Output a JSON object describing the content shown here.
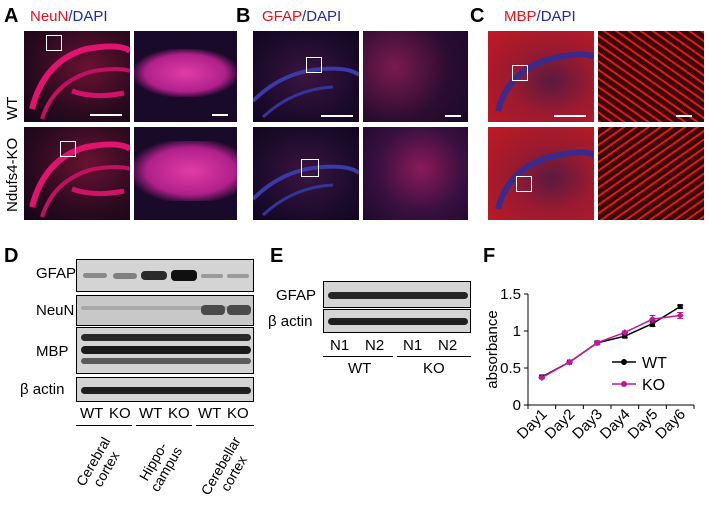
{
  "panels": {
    "A": {
      "letter": "A",
      "stain_red": "NeuN",
      "stain_sep": "/",
      "stain_blue": "DAPI"
    },
    "B": {
      "letter": "B",
      "stain_red": "GFAP",
      "stain_sep": "/",
      "stain_blue": "DAPI"
    },
    "C": {
      "letter": "C",
      "stain_red": "MBP",
      "stain_sep": "/",
      "stain_blue": "DAPI"
    },
    "D": {
      "letter": "D"
    },
    "E": {
      "letter": "E"
    },
    "F": {
      "letter": "F"
    }
  },
  "rows": {
    "wt": "WT",
    "ko": "Ndufs4-KO"
  },
  "blot_d": {
    "proteins": [
      "GFAP",
      "NeuN",
      "MBP",
      "β actin"
    ],
    "lanes": [
      "WT",
      "KO",
      "WT",
      "KO",
      "WT",
      "KO"
    ],
    "regions": [
      "Cerebral cortex",
      "Hippo-campus",
      "Cerebellar cortex"
    ],
    "region_lines": [
      [
        "Cerebral",
        "cortex"
      ],
      [
        "Hippo-",
        "campus"
      ],
      [
        "Cerebellar",
        "cortex"
      ]
    ]
  },
  "blot_e": {
    "proteins": [
      "GFAP",
      "β actin"
    ],
    "lanes": [
      "N1",
      "N2",
      "N1",
      "N2"
    ],
    "groups": [
      "WT",
      "KO"
    ]
  },
  "chart_data": {
    "type": "line",
    "title": "",
    "xlabel": "",
    "ylabel": "absorbance",
    "categories": [
      "Day1",
      "Day2",
      "Day3",
      "Day4",
      "Day5",
      "Day6"
    ],
    "ylim": [
      0,
      1.5
    ],
    "yticks": [
      "0",
      "0.5",
      "1",
      "1.5"
    ],
    "legend_position": "bottom-right",
    "series": [
      {
        "name": "WT",
        "color": "#000000",
        "marker": "square",
        "values": [
          0.38,
          0.58,
          0.84,
          0.93,
          1.1,
          1.33
        ],
        "errors": [
          0.01,
          0.01,
          0.02,
          0.02,
          0.04,
          0.02
        ]
      },
      {
        "name": "KO",
        "color": "#c0189a",
        "marker": "diamond",
        "values": [
          0.37,
          0.58,
          0.84,
          0.98,
          1.16,
          1.21
        ],
        "errors": [
          0.01,
          0.01,
          0.02,
          0.02,
          0.05,
          0.04
        ]
      }
    ]
  }
}
